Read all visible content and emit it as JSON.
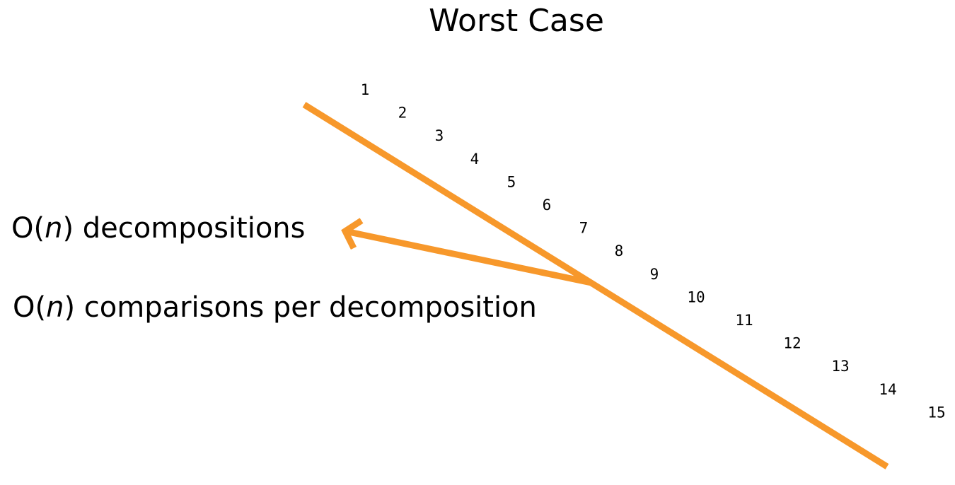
{
  "title": "Worst Case",
  "labels": {
    "decompositions": {
      "prefix": "O(",
      "var": "n",
      "suffix": ") decompositions"
    },
    "comparisons": {
      "prefix": "O(",
      "var": "n",
      "suffix": ") comparisons per decomposition"
    }
  },
  "sequence": [
    "1",
    "2",
    "3",
    "4",
    "5",
    "6",
    "7",
    "8",
    "9",
    "10",
    "11",
    "12",
    "13",
    "14",
    "15"
  ],
  "colors": {
    "accent": "#f7982b",
    "text": "#000000",
    "background": "#ffffff"
  }
}
